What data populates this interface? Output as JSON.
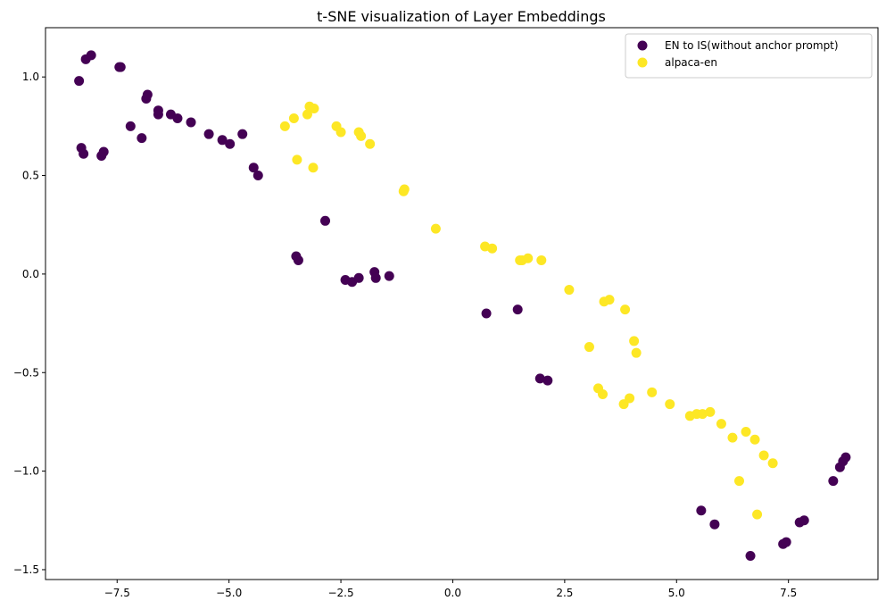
{
  "chart_data": {
    "type": "scatter",
    "title": "t-SNE visualization of Layer Embeddings",
    "xlabel": "",
    "ylabel": "",
    "xlim": [
      -9.1,
      9.5
    ],
    "ylim": [
      -1.55,
      1.25
    ],
    "xticks": [
      -7.5,
      -5.0,
      -2.5,
      0.0,
      2.5,
      5.0,
      7.5
    ],
    "xtick_labels": [
      "−7.5",
      "−5.0",
      "−2.5",
      "0.0",
      "2.5",
      "5.0",
      "7.5"
    ],
    "yticks": [
      -1.5,
      -1.0,
      -0.5,
      0.0,
      0.5,
      1.0
    ],
    "ytick_labels": [
      "−1.5",
      "−1.0",
      "−0.5",
      "0.0",
      "0.5",
      "1.0"
    ],
    "grid": false,
    "legend_position": "top-right",
    "series": [
      {
        "name": "EN to IS(without anchor prompt)",
        "color": "#440154",
        "points": [
          [
            -8.35,
            0.98
          ],
          [
            -8.3,
            0.64
          ],
          [
            -8.25,
            0.61
          ],
          [
            -8.2,
            1.09
          ],
          [
            -8.08,
            1.11
          ],
          [
            -7.85,
            0.6
          ],
          [
            -7.8,
            0.62
          ],
          [
            -7.45,
            1.05
          ],
          [
            -7.42,
            1.05
          ],
          [
            -7.2,
            0.75
          ],
          [
            -6.95,
            0.69
          ],
          [
            -6.85,
            0.89
          ],
          [
            -6.82,
            0.91
          ],
          [
            -6.58,
            0.81
          ],
          [
            -6.58,
            0.83
          ],
          [
            -6.3,
            0.81
          ],
          [
            -6.15,
            0.79
          ],
          [
            -5.85,
            0.77
          ],
          [
            -5.45,
            0.71
          ],
          [
            -5.15,
            0.68
          ],
          [
            -4.98,
            0.66
          ],
          [
            -4.7,
            0.71
          ],
          [
            -4.45,
            0.54
          ],
          [
            -4.35,
            0.5
          ],
          [
            -3.5,
            0.09
          ],
          [
            -3.45,
            0.07
          ],
          [
            -2.85,
            0.27
          ],
          [
            -2.4,
            -0.03
          ],
          [
            -2.25,
            -0.04
          ],
          [
            -2.1,
            -0.02
          ],
          [
            -1.75,
            0.01
          ],
          [
            -1.72,
            -0.02
          ],
          [
            -1.42,
            -0.01
          ],
          [
            0.75,
            -0.2
          ],
          [
            1.45,
            -0.18
          ],
          [
            1.95,
            -0.53
          ],
          [
            2.12,
            -0.54
          ],
          [
            5.55,
            -1.2
          ],
          [
            5.85,
            -1.27
          ],
          [
            6.65,
            -1.43
          ],
          [
            7.38,
            -1.37
          ],
          [
            7.45,
            -1.36
          ],
          [
            7.75,
            -1.26
          ],
          [
            7.85,
            -1.25
          ],
          [
            8.5,
            -1.05
          ],
          [
            8.65,
            -0.98
          ],
          [
            8.72,
            -0.95
          ],
          [
            8.78,
            -0.93
          ]
        ]
      },
      {
        "name": "alpaca-en",
        "color": "#fde725",
        "points": [
          [
            -3.75,
            0.75
          ],
          [
            -3.55,
            0.79
          ],
          [
            -3.48,
            0.58
          ],
          [
            -3.25,
            0.81
          ],
          [
            -3.2,
            0.85
          ],
          [
            -3.1,
            0.84
          ],
          [
            -3.12,
            0.54
          ],
          [
            -2.6,
            0.75
          ],
          [
            -2.5,
            0.72
          ],
          [
            -2.1,
            0.72
          ],
          [
            -2.05,
            0.7
          ],
          [
            -1.85,
            0.66
          ],
          [
            -1.1,
            0.42
          ],
          [
            -1.08,
            0.43
          ],
          [
            -0.38,
            0.23
          ],
          [
            0.72,
            0.14
          ],
          [
            0.88,
            0.13
          ],
          [
            1.5,
            0.07
          ],
          [
            1.55,
            0.07
          ],
          [
            1.68,
            0.08
          ],
          [
            1.98,
            0.07
          ],
          [
            2.6,
            -0.08
          ],
          [
            3.05,
            -0.37
          ],
          [
            3.25,
            -0.58
          ],
          [
            3.35,
            -0.61
          ],
          [
            3.38,
            -0.14
          ],
          [
            3.5,
            -0.13
          ],
          [
            3.82,
            -0.66
          ],
          [
            3.85,
            -0.18
          ],
          [
            3.95,
            -0.63
          ],
          [
            4.05,
            -0.34
          ],
          [
            4.1,
            -0.4
          ],
          [
            4.45,
            -0.6
          ],
          [
            4.85,
            -0.66
          ],
          [
            5.3,
            -0.72
          ],
          [
            5.45,
            -0.71
          ],
          [
            5.58,
            -0.71
          ],
          [
            5.75,
            -0.7
          ],
          [
            6.0,
            -0.76
          ],
          [
            6.25,
            -0.83
          ],
          [
            6.4,
            -1.05
          ],
          [
            6.55,
            -0.8
          ],
          [
            6.75,
            -0.84
          ],
          [
            6.8,
            -1.22
          ],
          [
            6.95,
            -0.92
          ],
          [
            7.15,
            -0.96
          ]
        ]
      }
    ]
  }
}
